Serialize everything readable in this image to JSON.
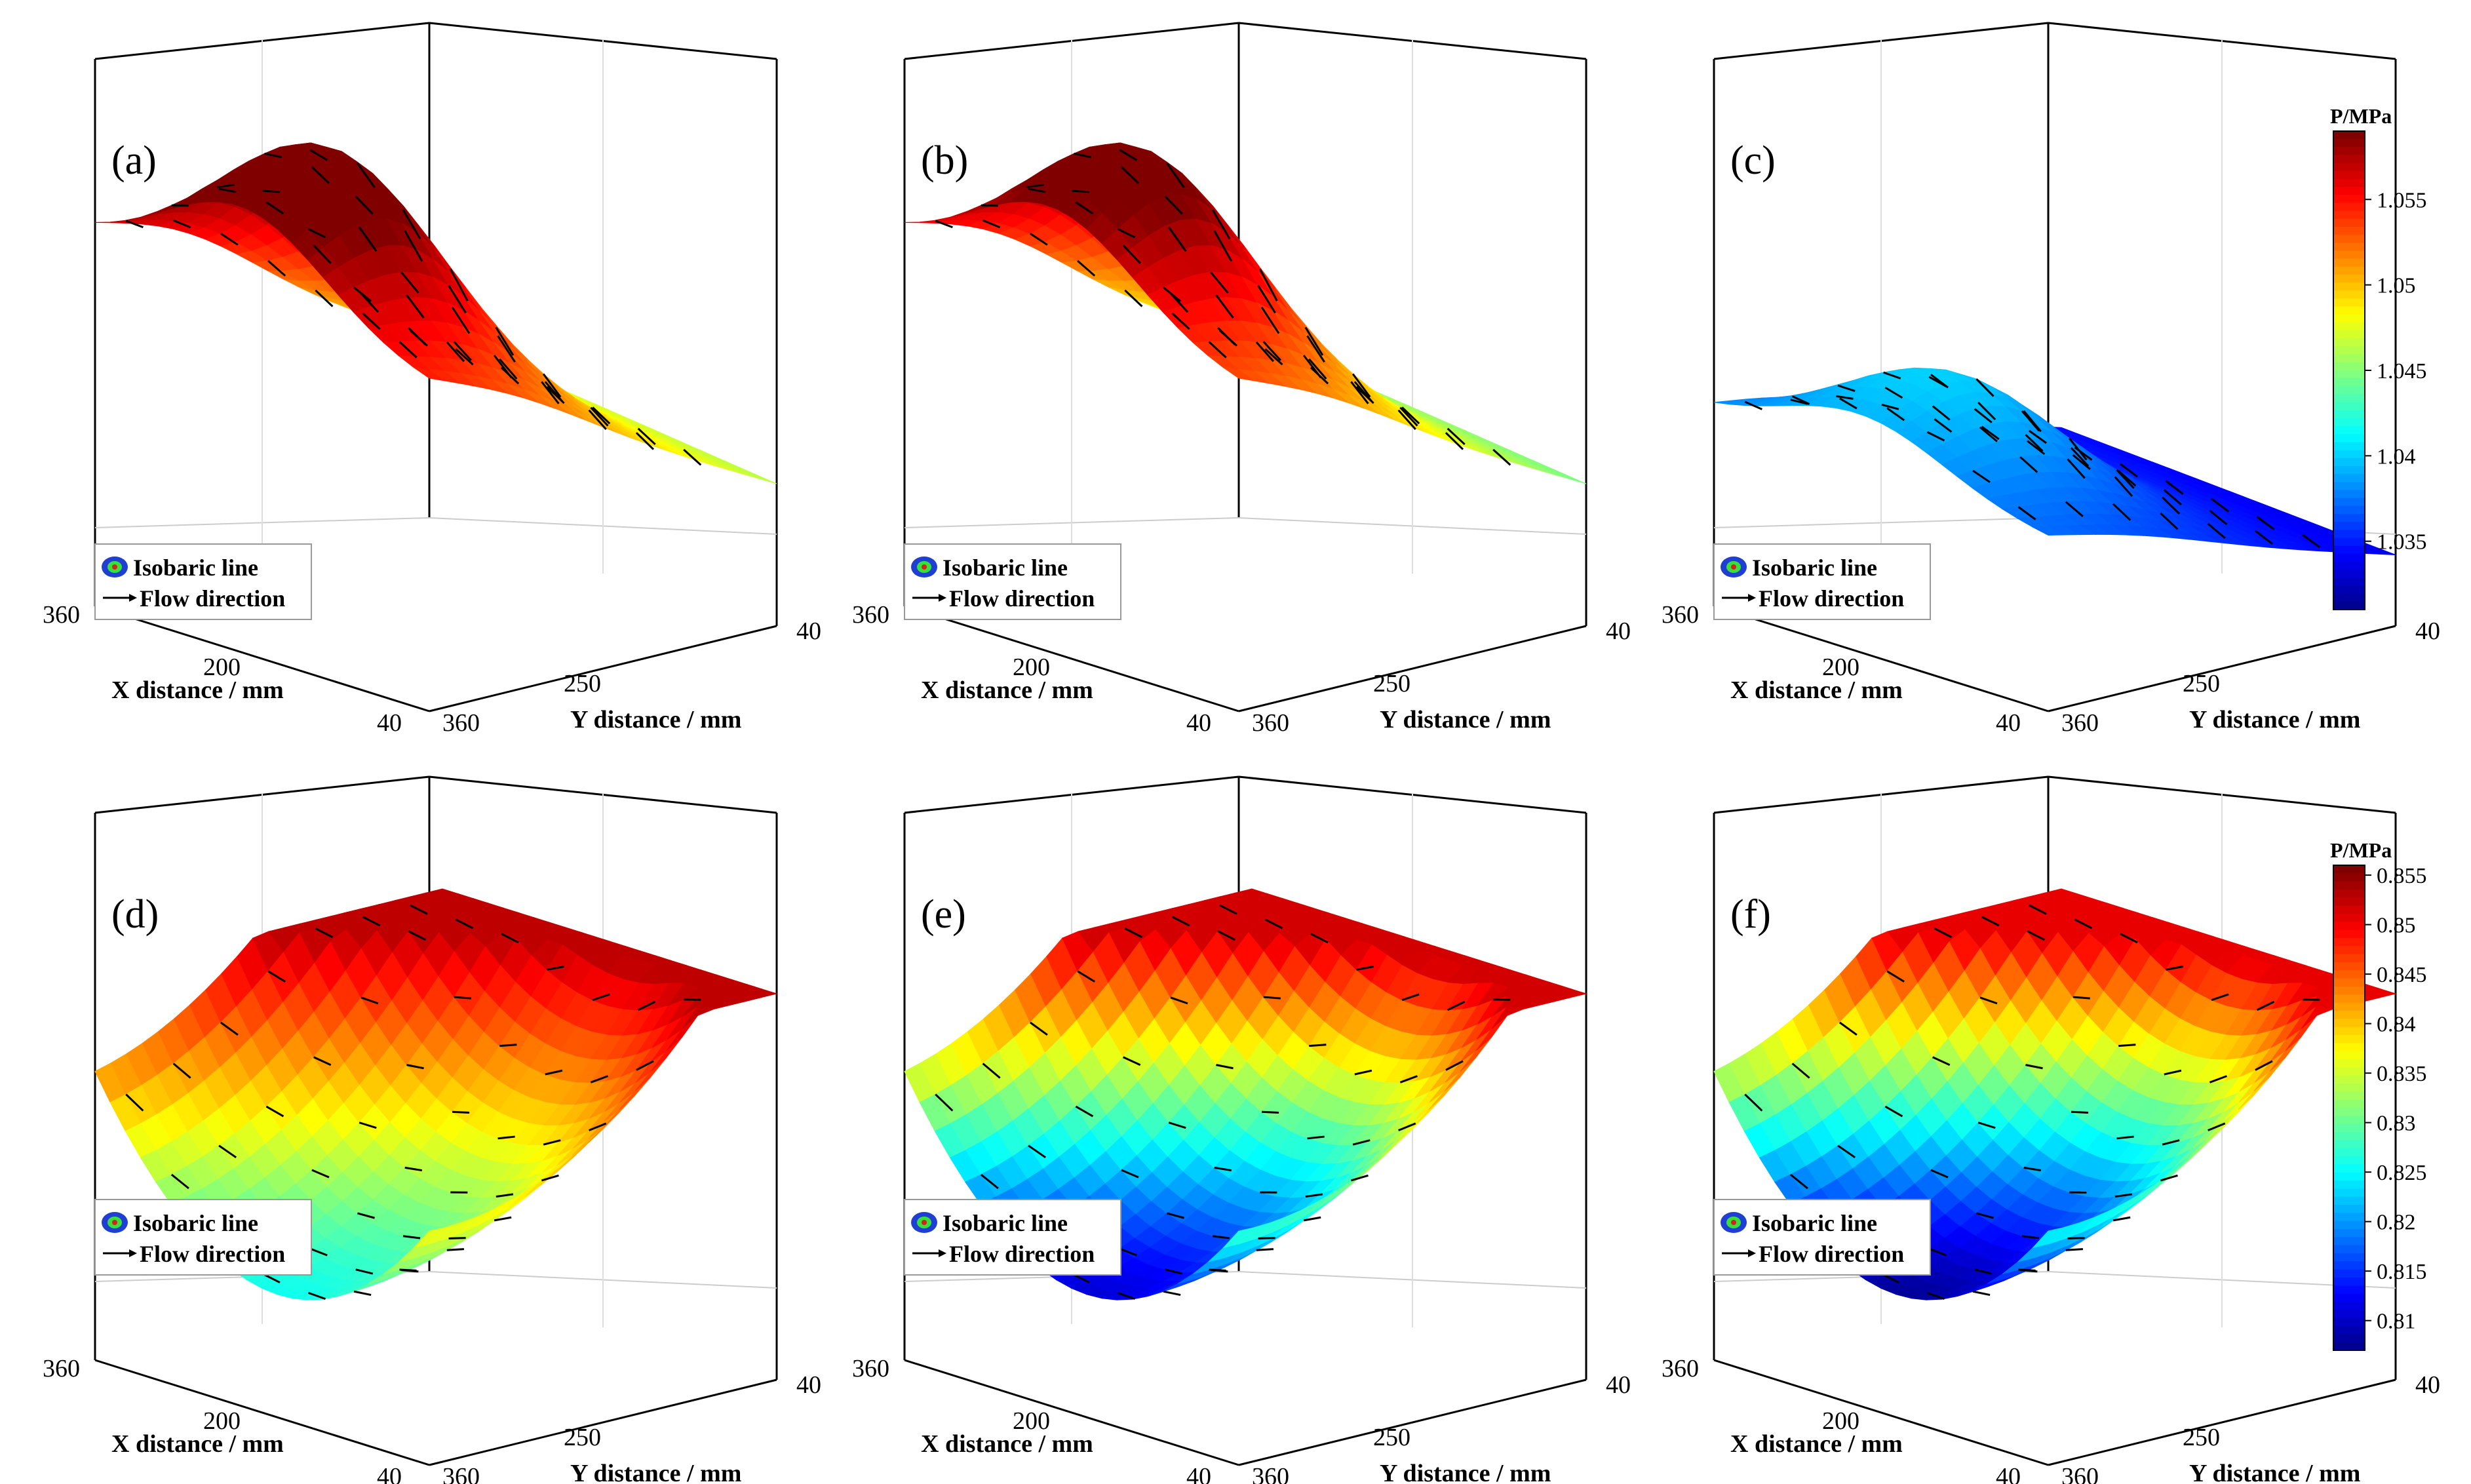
{
  "figure": {
    "legend": {
      "isobar": "Isobaric line",
      "flow": "Flow direction"
    },
    "colorbars": [
      {
        "title": "P/MPa",
        "ticks": [
          "1.055",
          "1.05",
          "1.045",
          "1.04",
          "1.035"
        ],
        "range": [
          1.031,
          1.059
        ]
      },
      {
        "title": "P/MPa",
        "ticks": [
          "0.855",
          "0.85",
          "0.845",
          "0.84",
          "0.835",
          "0.83",
          "0.825",
          "0.82",
          "0.815",
          "0.81"
        ],
        "range": [
          0.807,
          0.856
        ]
      }
    ],
    "colors": {
      "low": "#00008f",
      "mid": "#7fff7f",
      "high": "#800000",
      "isobar_edge": "#222222",
      "arrow": "#000000"
    }
  },
  "chart_data": [
    {
      "type": "surface3d",
      "panel": "(a)",
      "xlabel": "X distance / mm",
      "ylabel": "Y distance / mm",
      "xticks": [
        "360",
        "200",
        "40"
      ],
      "yticks": [
        "360",
        "250",
        "40"
      ],
      "shape": "ridge",
      "pressure_range": [
        1.042,
        1.058
      ]
    },
    {
      "type": "surface3d",
      "panel": "(b)",
      "xlabel": "X distance / mm",
      "ylabel": "Y distance / mm",
      "xticks": [
        "360",
        "200",
        "40"
      ],
      "yticks": [
        "360",
        "250",
        "40"
      ],
      "shape": "ridge",
      "pressure_range": [
        1.04,
        1.057
      ]
    },
    {
      "type": "surface3d",
      "panel": "(c)",
      "xlabel": "X distance / mm",
      "ylabel": "Y distance / mm",
      "xticks": [
        "360",
        "200",
        "40"
      ],
      "yticks": [
        "360",
        "250",
        "40"
      ],
      "shape": "ridge",
      "pressure_range": [
        1.033,
        1.045
      ]
    },
    {
      "type": "surface3d",
      "panel": "(d)",
      "xlabel": "X distance / mm",
      "ylabel": "Y distance / mm",
      "xticks": [
        "360",
        "200",
        "40"
      ],
      "yticks": [
        "360",
        "250",
        "40"
      ],
      "shape": "valley",
      "pressure_range": [
        0.826,
        0.853
      ]
    },
    {
      "type": "surface3d",
      "panel": "(e)",
      "xlabel": "X distance / mm",
      "ylabel": "Y distance / mm",
      "xticks": [
        "360",
        "200",
        "40"
      ],
      "yticks": [
        "360",
        "250",
        "40"
      ],
      "shape": "valley",
      "pressure_range": [
        0.811,
        0.852
      ]
    },
    {
      "type": "surface3d",
      "panel": "(f)",
      "xlabel": "X distance / mm",
      "ylabel": "Y distance / mm",
      "xticks": [
        "360",
        "200",
        "40"
      ],
      "yticks": [
        "360",
        "250",
        "40"
      ],
      "shape": "valley",
      "pressure_range": [
        0.808,
        0.851
      ]
    }
  ]
}
